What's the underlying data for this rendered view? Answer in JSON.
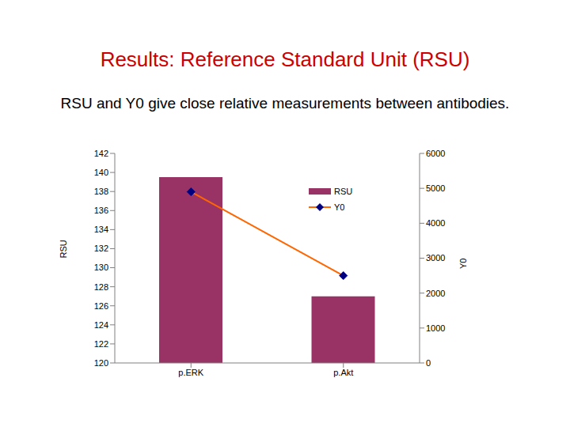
{
  "chart_data": {
    "type": "bar",
    "title": "Results: Reference Standard Unit (RSU)",
    "subtitle": "RSU and Y0 give close relative measurements between antibodies.",
    "categories": [
      "p.ERK",
      "p.Akt"
    ],
    "series": [
      {
        "name": "RSU",
        "type": "bar",
        "color": "#993366",
        "values": [
          139.5,
          127
        ]
      },
      {
        "name": "Y0",
        "type": "line",
        "color": "#ff6600",
        "marker": "diamond",
        "axis": "y2",
        "values": [
          4900,
          2500
        ]
      }
    ],
    "y_label": "RSU",
    "y2_label": "Y0",
    "ylim": [
      120,
      142
    ],
    "yticks": [
      120,
      122,
      124,
      126,
      128,
      130,
      132,
      134,
      136,
      138,
      140,
      142
    ],
    "y2lim": [
      0,
      6000
    ],
    "y2ticks": [
      0,
      1000,
      2000,
      3000,
      4000,
      5000,
      6000
    ],
    "grid": false,
    "legend": "upper right"
  }
}
